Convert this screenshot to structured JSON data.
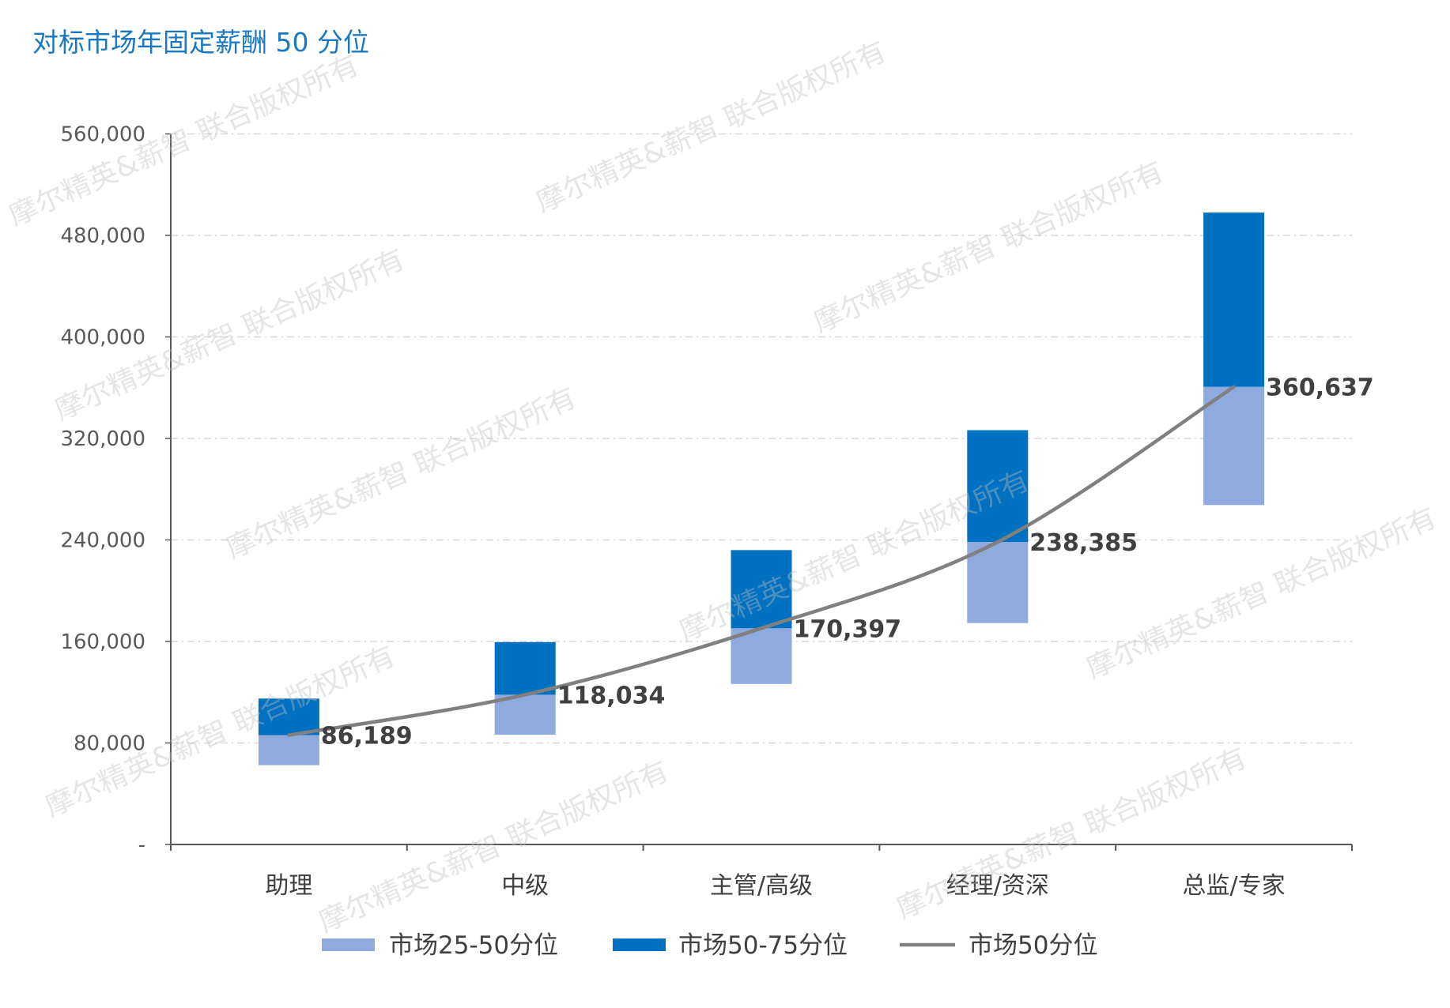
{
  "chart_data": {
    "type": "bar",
    "title": "对标市场年固定薪酬 50 分位",
    "xlabel": "",
    "ylabel": "",
    "categories": [
      "助理",
      "中级",
      "主管/高级",
      "经理/资深",
      "总监/专家"
    ],
    "ylim": [
      0,
      560000
    ],
    "yticks": [
      0,
      80000,
      160000,
      240000,
      320000,
      400000,
      480000,
      560000
    ],
    "ytick_labels": [
      "-",
      "80,000",
      "160,000",
      "240,000",
      "320,000",
      "400,000",
      "480,000",
      "560,000"
    ],
    "grid": true,
    "legend": "bottom",
    "series": [
      {
        "name": "市场25-50分位",
        "type": "floating-bar",
        "color": "#8FAADC",
        "low": [
          62500,
          86500,
          126500,
          174500,
          267500
        ],
        "high": [
          86189,
          118034,
          170397,
          238385,
          360637
        ]
      },
      {
        "name": "市场50-75分位",
        "type": "floating-bar",
        "color": "#0070C0",
        "low": [
          86189,
          118034,
          170397,
          238385,
          360637
        ],
        "high": [
          115000,
          159500,
          232000,
          326500,
          498000
        ]
      },
      {
        "name": "市场50分位",
        "type": "line",
        "color": "#808080",
        "values": [
          86189,
          118034,
          170397,
          238385,
          360637
        ],
        "labels": [
          "86,189",
          "118,034",
          "170,397",
          "238,385",
          "360,637"
        ]
      }
    ]
  },
  "watermark": "摩尔精英&薪智 联合版权所有",
  "colors": {
    "title": "#1A78C2",
    "text": "#404040",
    "axis": "#595959",
    "grid": "#D9D9D9",
    "watermark": "#BFBFBF"
  }
}
